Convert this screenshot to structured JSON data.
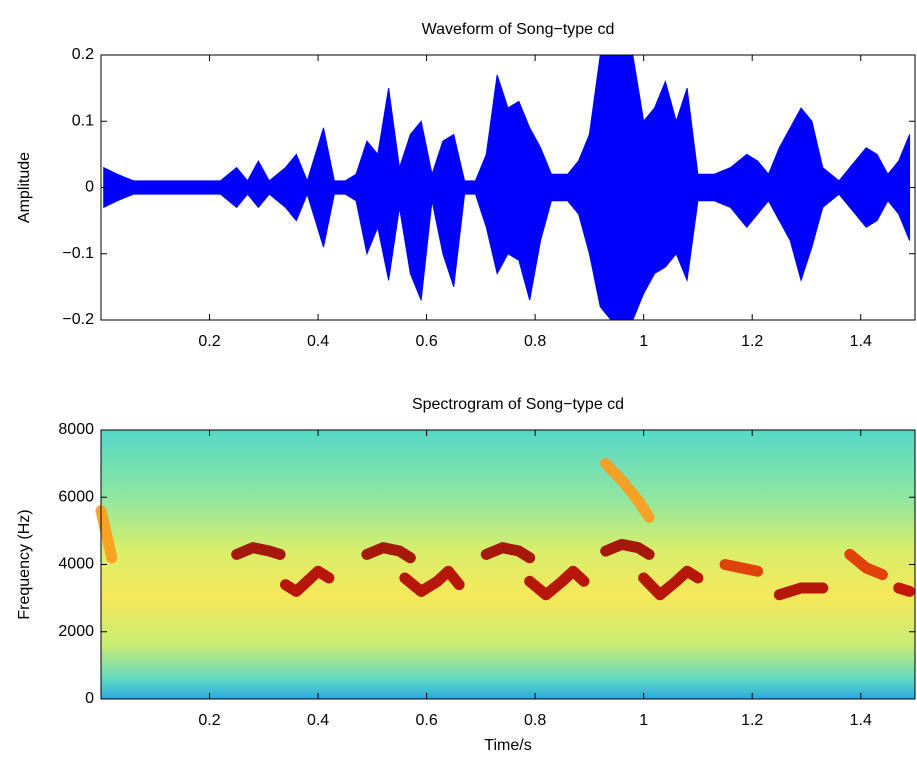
{
  "chart_data": [
    {
      "type": "envelope",
      "title": "Waveform of Song−type cd",
      "ylabel": "Amplitude",
      "x": [
        0.005,
        0.03,
        0.06,
        0.1,
        0.14,
        0.18,
        0.22,
        0.25,
        0.27,
        0.29,
        0.31,
        0.34,
        0.36,
        0.38,
        0.41,
        0.43,
        0.45,
        0.47,
        0.49,
        0.51,
        0.53,
        0.55,
        0.57,
        0.59,
        0.61,
        0.63,
        0.65,
        0.67,
        0.69,
        0.71,
        0.73,
        0.75,
        0.77,
        0.79,
        0.81,
        0.83,
        0.86,
        0.88,
        0.9,
        0.92,
        0.94,
        0.96,
        0.98,
        1.0,
        1.02,
        1.04,
        1.06,
        1.08,
        1.1,
        1.13,
        1.16,
        1.19,
        1.21,
        1.23,
        1.25,
        1.27,
        1.29,
        1.31,
        1.33,
        1.36,
        1.39,
        1.41,
        1.43,
        1.45,
        1.47,
        1.49
      ],
      "series": [
        {
          "color": "#0000ff",
          "values": [
            0.03,
            0.02,
            0.01,
            0.01,
            0.01,
            0.01,
            0.01,
            0.03,
            0.01,
            0.04,
            0.01,
            0.03,
            0.05,
            0.01,
            0.09,
            0.01,
            0.01,
            0.02,
            0.07,
            0.05,
            0.15,
            0.03,
            0.08,
            0.1,
            0.02,
            0.07,
            0.08,
            0.01,
            0.01,
            0.05,
            0.17,
            0.12,
            0.13,
            0.09,
            0.06,
            0.02,
            0.02,
            0.04,
            0.08,
            0.2,
            0.2,
            0.2,
            0.2,
            0.1,
            0.12,
            0.16,
            0.1,
            0.15,
            0.02,
            0.02,
            0.03,
            0.05,
            0.04,
            0.02,
            0.06,
            0.09,
            0.12,
            0.1,
            0.03,
            0.01,
            0.04,
            0.06,
            0.05,
            0.02,
            0.04,
            0.08
          ]
        },
        {
          "color": "#0000ff",
          "values": [
            -0.03,
            -0.02,
            -0.01,
            -0.01,
            -0.01,
            -0.01,
            -0.01,
            -0.03,
            -0.01,
            -0.03,
            -0.01,
            -0.03,
            -0.05,
            -0.01,
            -0.09,
            -0.01,
            -0.01,
            -0.02,
            -0.1,
            -0.06,
            -0.14,
            -0.03,
            -0.13,
            -0.17,
            -0.02,
            -0.1,
            -0.15,
            -0.01,
            -0.01,
            -0.06,
            -0.13,
            -0.1,
            -0.11,
            -0.17,
            -0.08,
            -0.02,
            -0.02,
            -0.04,
            -0.1,
            -0.18,
            -0.2,
            -0.2,
            -0.2,
            -0.16,
            -0.13,
            -0.12,
            -0.1,
            -0.14,
            -0.02,
            -0.02,
            -0.03,
            -0.06,
            -0.04,
            -0.02,
            -0.05,
            -0.08,
            -0.14,
            -0.09,
            -0.03,
            -0.01,
            -0.04,
            -0.06,
            -0.05,
            -0.02,
            -0.04,
            -0.08
          ]
        }
      ],
      "xlim": [
        0,
        1.5
      ],
      "ylim": [
        -0.2,
        0.2
      ],
      "xticks": [
        0.2,
        0.4,
        0.6,
        0.8,
        1,
        1.2,
        1.4
      ],
      "yticks": [
        {
          "value": -0.2,
          "label": "−0.2"
        },
        {
          "value": -0.1,
          "label": "−0.1"
        },
        0,
        0.1,
        0.2
      ]
    },
    {
      "type": "spectrogram",
      "title": "Spectrogram of Song−type cd",
      "xlabel": "Time/s",
      "ylabel": "Frequency (Hz)",
      "series": [
        {
          "color": "#ff9a1a",
          "x": [
            0.0,
            0.01,
            0.02
          ],
          "values": [
            5600,
            4900,
            4200
          ]
        },
        {
          "color": "#a00000",
          "x": [
            0.25,
            0.28,
            0.31,
            0.33
          ],
          "values": [
            4300,
            4500,
            4400,
            4300
          ]
        },
        {
          "color": "#b00000",
          "x": [
            0.34,
            0.36,
            0.38,
            0.4,
            0.42
          ],
          "values": [
            3400,
            3200,
            3500,
            3800,
            3600
          ]
        },
        {
          "color": "#a00000",
          "x": [
            0.49,
            0.52,
            0.55,
            0.57
          ],
          "values": [
            4300,
            4500,
            4400,
            4200
          ]
        },
        {
          "color": "#b00000",
          "x": [
            0.56,
            0.59,
            0.62,
            0.64,
            0.66
          ],
          "values": [
            3600,
            3200,
            3500,
            3800,
            3400
          ]
        },
        {
          "color": "#a00000",
          "x": [
            0.71,
            0.74,
            0.77,
            0.79
          ],
          "values": [
            4300,
            4500,
            4400,
            4200
          ]
        },
        {
          "color": "#b00000",
          "x": [
            0.79,
            0.82,
            0.85,
            0.87,
            0.89
          ],
          "values": [
            3500,
            3100,
            3500,
            3800,
            3500
          ]
        },
        {
          "color": "#a00000",
          "x": [
            0.93,
            0.96,
            0.99,
            1.01
          ],
          "values": [
            4400,
            4600,
            4500,
            4300
          ]
        },
        {
          "color": "#b00000",
          "x": [
            1.0,
            1.03,
            1.06,
            1.08,
            1.1
          ],
          "values": [
            3600,
            3100,
            3500,
            3800,
            3600
          ]
        },
        {
          "color": "#e03000",
          "x": [
            1.15,
            1.18,
            1.21
          ],
          "values": [
            4000,
            3900,
            3800
          ]
        },
        {
          "color": "#b00000",
          "x": [
            1.25,
            1.29,
            1.33
          ],
          "values": [
            3100,
            3300,
            3300
          ]
        },
        {
          "color": "#e03000",
          "x": [
            1.38,
            1.41,
            1.44
          ],
          "values": [
            4300,
            3900,
            3700
          ]
        },
        {
          "color": "#c00000",
          "x": [
            1.47,
            1.49
          ],
          "values": [
            3300,
            3200
          ]
        },
        {
          "color": "#ff9a1a",
          "x": [
            0.93,
            0.96,
            0.99,
            1.01
          ],
          "values": [
            7000,
            6500,
            5900,
            5400
          ]
        }
      ],
      "xlim": [
        0,
        1.5
      ],
      "ylim": [
        0,
        8000
      ],
      "xticks": [
        0.2,
        0.4,
        0.6,
        0.8,
        1,
        1.2,
        1.4
      ],
      "yticks": [
        0,
        2000,
        4000,
        6000,
        8000
      ]
    }
  ]
}
